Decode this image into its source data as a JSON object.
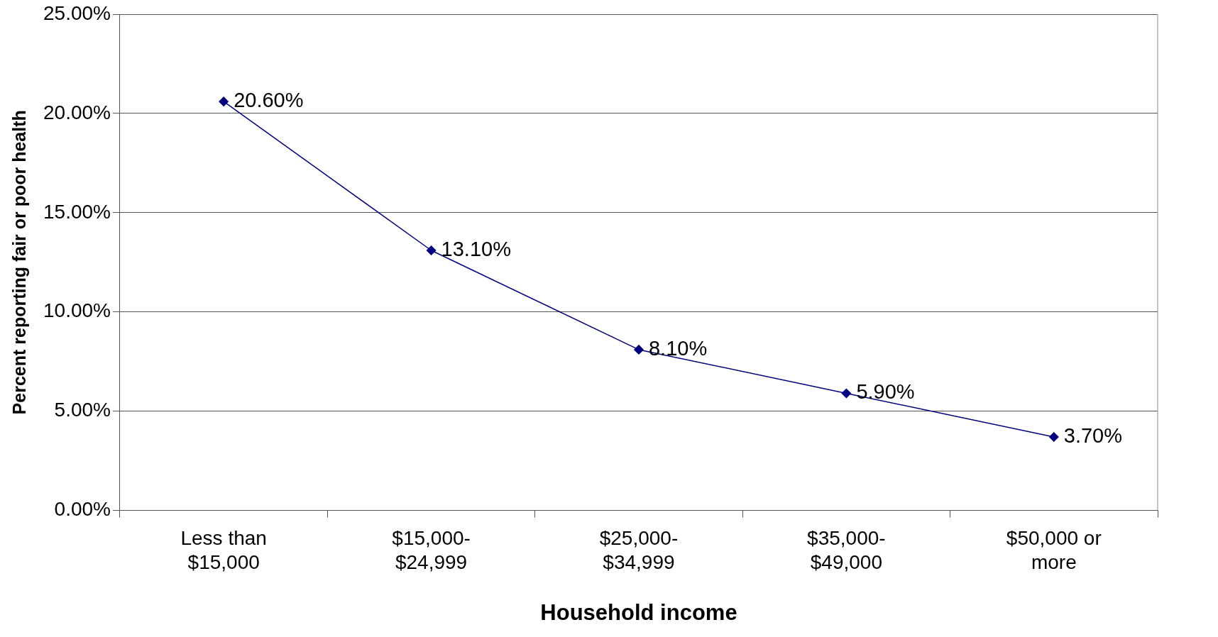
{
  "chart_data": {
    "type": "line",
    "xlabel": "Household income",
    "ylabel": "Percent reporting fair or poor health",
    "categories": [
      "Less than\n$15,000",
      "$15,000-\n$24,999",
      "$25,000-\n$34,999",
      "$35,000-\n$49,000",
      "$50,000 or\nmore"
    ],
    "series": [
      {
        "color": "#000080",
        "values": [
          20.6,
          13.1,
          8.1,
          5.9,
          3.7
        ],
        "value_labels": [
          "20.60%",
          "13.10%",
          "8.10%",
          "5.90%",
          "3.70%"
        ]
      }
    ],
    "ylim": [
      0,
      25
    ],
    "yticks": [
      {
        "value": 0,
        "label": "0.00%"
      },
      {
        "value": 5,
        "label": "5.00%"
      },
      {
        "value": 10,
        "label": "10.00%"
      },
      {
        "value": 15,
        "label": "15.00%"
      },
      {
        "value": 20,
        "label": "20.00%"
      },
      {
        "value": 25,
        "label": "25.00%"
      }
    ],
    "grid": "y",
    "legend": false,
    "marker": "diamond",
    "line_style": "solid"
  }
}
